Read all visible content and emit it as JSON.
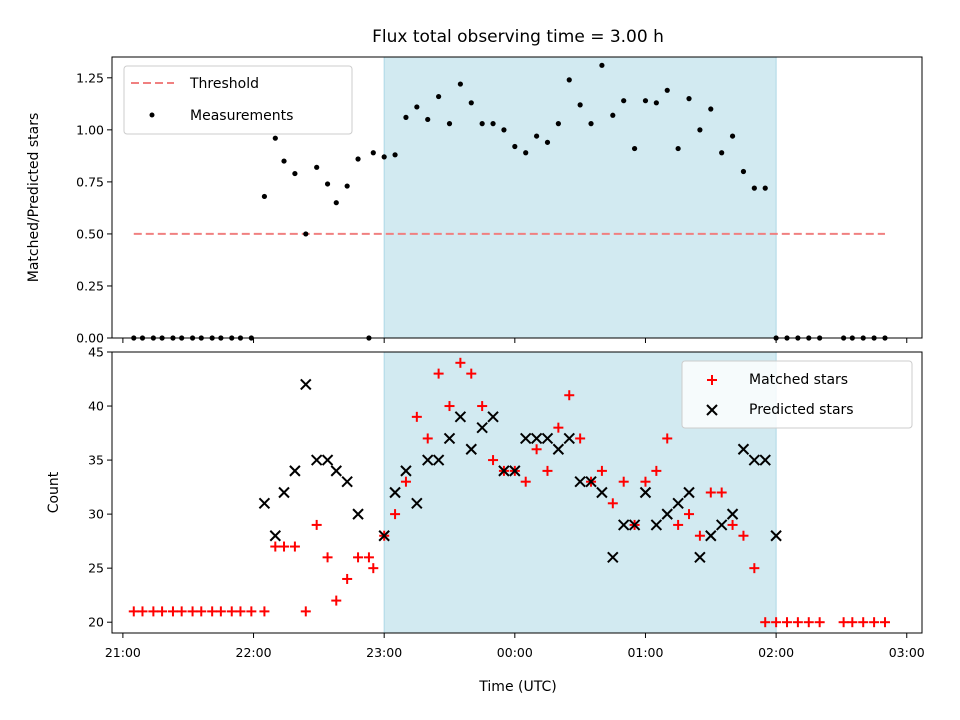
{
  "chart_data": [
    {
      "type": "scatter",
      "title": "Flux total observing time = 3.00 h",
      "ylabel": "Matched/Predicted stars",
      "xlabel": "",
      "ylim": [
        0,
        1.35
      ],
      "yticks": [
        0.0,
        0.25,
        0.5,
        0.75,
        1.0,
        1.25
      ],
      "ytick_labels": [
        "0.00",
        "0.25",
        "0.50",
        "0.75",
        "1.00",
        "1.25"
      ],
      "shaded_span": {
        "from": "23:00",
        "to": "02:00",
        "color": "#add8e6"
      },
      "legend_position": "upper-left",
      "series": [
        {
          "name": "Threshold",
          "kind": "line",
          "style": "dashed",
          "color": "#f08080",
          "x": [
            "21:05",
            "02:50"
          ],
          "y": [
            0.5,
            0.5
          ]
        },
        {
          "name": "Measurements",
          "kind": "scatter",
          "color": "#000000",
          "x": [
            "21:05",
            "21:09",
            "21:14",
            "21:18",
            "21:23",
            "21:27",
            "21:32",
            "21:36",
            "21:41",
            "21:45",
            "21:50",
            "21:54",
            "21:59",
            "22:05",
            "22:10",
            "22:14",
            "22:19",
            "22:24",
            "22:29",
            "22:34",
            "22:38",
            "22:43",
            "22:48",
            "22:53",
            "22:55",
            "23:00",
            "23:05",
            "23:10",
            "23:15",
            "23:20",
            "23:25",
            "23:30",
            "23:35",
            "23:40",
            "23:45",
            "23:50",
            "23:55",
            "00:00",
            "00:05",
            "00:10",
            "00:15",
            "00:20",
            "00:25",
            "00:30",
            "00:35",
            "00:40",
            "00:45",
            "00:50",
            "00:55",
            "01:00",
            "01:05",
            "01:10",
            "01:15",
            "01:20",
            "01:25",
            "01:30",
            "01:35",
            "01:40",
            "01:45",
            "01:50",
            "01:55",
            "02:00",
            "02:05",
            "02:10",
            "02:15",
            "02:20",
            "02:31",
            "02:35",
            "02:40",
            "02:45",
            "02:50"
          ],
          "y": [
            0,
            0,
            0,
            0,
            0,
            0,
            0,
            0,
            0,
            0,
            0,
            0,
            0,
            0.68,
            0.96,
            0.85,
            0.79,
            0.5,
            0.82,
            0.74,
            0.65,
            0.73,
            0.86,
            0.0,
            0.89,
            0.87,
            0.88,
            1.06,
            1.11,
            1.05,
            1.16,
            1.03,
            1.22,
            1.13,
            1.03,
            1.03,
            1.0,
            0.92,
            0.89,
            0.97,
            0.94,
            1.03,
            1.24,
            1.12,
            1.03,
            1.31,
            1.07,
            1.14,
            0.91,
            1.14,
            1.13,
            1.19,
            0.91,
            1.15,
            1.0,
            1.1,
            0.89,
            0.97,
            0.8,
            0.72,
            0.72,
            0,
            0,
            0,
            0,
            0,
            0,
            0,
            0,
            0,
            0
          ]
        }
      ]
    },
    {
      "type": "scatter",
      "title": "",
      "ylabel": "Count",
      "xlabel": "Time (UTC)",
      "ylim": [
        19,
        45
      ],
      "yticks": [
        20,
        25,
        30,
        35,
        40,
        45
      ],
      "ytick_labels": [
        "20",
        "25",
        "30",
        "35",
        "40",
        "45"
      ],
      "xticks": [
        "21:00",
        "22:00",
        "23:00",
        "00:00",
        "01:00",
        "02:00",
        "03:00"
      ],
      "xlim": [
        "20:55",
        "03:07"
      ],
      "shaded_span": {
        "from": "23:00",
        "to": "02:00",
        "color": "#add8e6"
      },
      "legend_position": "upper-right",
      "series": [
        {
          "name": "Matched stars",
          "marker": "plus",
          "color": "#ff0000",
          "x": [
            "21:05",
            "21:09",
            "21:14",
            "21:18",
            "21:23",
            "21:27",
            "21:32",
            "21:36",
            "21:41",
            "21:45",
            "21:50",
            "21:54",
            "21:59",
            "22:05",
            "22:10",
            "22:14",
            "22:19",
            "22:24",
            "22:29",
            "22:34",
            "22:38",
            "22:43",
            "22:48",
            "22:53",
            "22:55",
            "23:00",
            "23:05",
            "23:10",
            "23:15",
            "23:20",
            "23:25",
            "23:30",
            "23:35",
            "23:40",
            "23:45",
            "23:50",
            "23:55",
            "00:00",
            "00:05",
            "00:10",
            "00:15",
            "00:20",
            "00:25",
            "00:30",
            "00:35",
            "00:40",
            "00:45",
            "00:50",
            "00:55",
            "01:00",
            "01:05",
            "01:10",
            "01:15",
            "01:20",
            "01:25",
            "01:30",
            "01:35",
            "01:40",
            "01:45",
            "01:50",
            "01:55",
            "02:00",
            "02:05",
            "02:10",
            "02:15",
            "02:20",
            "02:31",
            "02:35",
            "02:40",
            "02:45",
            "02:50"
          ],
          "y": [
            21,
            21,
            21,
            21,
            21,
            21,
            21,
            21,
            21,
            21,
            21,
            21,
            21,
            21,
            27,
            27,
            27,
            21,
            29,
            26,
            22,
            24,
            26,
            26,
            25,
            28,
            30,
            33,
            39,
            37,
            43,
            40,
            44,
            43,
            40,
            35,
            34,
            34,
            33,
            36,
            34,
            38,
            41,
            37,
            33,
            34,
            31,
            33,
            29,
            33,
            34,
            37,
            29,
            30,
            28,
            32,
            32,
            29,
            28,
            25,
            20,
            20,
            20,
            20,
            20,
            20,
            20,
            20,
            20,
            20,
            20
          ]
        },
        {
          "name": "Predicted stars",
          "marker": "x",
          "color": "#000000",
          "x": [
            "22:05",
            "22:10",
            "22:14",
            "22:19",
            "22:24",
            "22:29",
            "22:34",
            "22:38",
            "22:43",
            "22:48",
            "23:00",
            "23:05",
            "23:10",
            "23:15",
            "23:20",
            "23:25",
            "23:30",
            "23:35",
            "23:40",
            "23:45",
            "23:50",
            "23:55",
            "00:00",
            "00:05",
            "00:10",
            "00:15",
            "00:20",
            "00:25",
            "00:30",
            "00:35",
            "00:40",
            "00:45",
            "00:50",
            "00:55",
            "01:00",
            "01:05",
            "01:10",
            "01:15",
            "01:20",
            "01:25",
            "01:30",
            "01:35",
            "01:40",
            "01:45",
            "01:50",
            "01:55",
            "02:00"
          ],
          "y": [
            31,
            28,
            32,
            34,
            42,
            35,
            35,
            34,
            33,
            30,
            28,
            32,
            34,
            31,
            35,
            35,
            37,
            39,
            36,
            38,
            39,
            34,
            34,
            37,
            37,
            37,
            36,
            37,
            33,
            33,
            32,
            26,
            29,
            29,
            32,
            29,
            30,
            31,
            32,
            26,
            28,
            29,
            30,
            36,
            35,
            35,
            28
          ]
        }
      ]
    }
  ]
}
